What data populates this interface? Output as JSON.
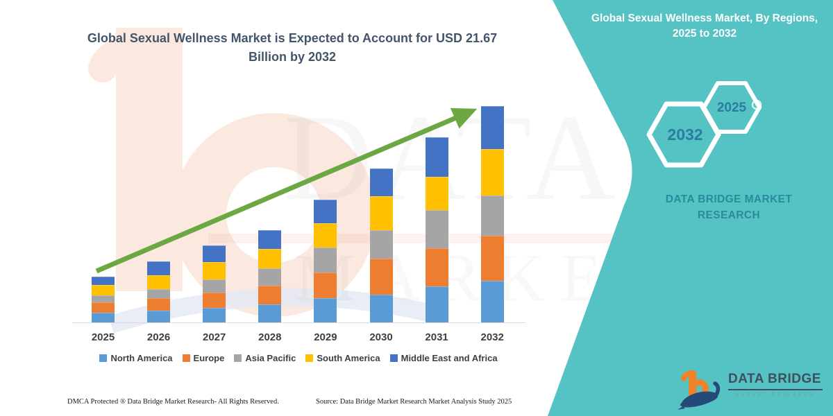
{
  "header": {
    "left_title": "Global Sexual Wellness Market is Expected to Account for USD 21.67 Billion by 2032"
  },
  "right_panel": {
    "title": "Global Sexual Wellness Market, By Regions, 2025 to 2032",
    "background_color": "#55C2C4",
    "hexagons": [
      {
        "label": "2032",
        "size": "large"
      },
      {
        "label": "2025",
        "size": "small"
      }
    ],
    "brand_text": "DATA BRIDGE MARKET RESEARCH"
  },
  "logo": {
    "name": "DATA BRIDGE",
    "subtitle": "MARKET RESEARCH"
  },
  "watermark": {
    "row1": "DATA BRIDGE",
    "row2": "MARKET RESEARCH"
  },
  "footer": {
    "dmca": "DMCA Protected ® Data Bridge Market Research-  All Rights Reserved.",
    "source": "Source: Data Bridge Market Research  Market Analysis Study 2025"
  },
  "colors": {
    "teal_panel": "#55C2C4",
    "title_text": "#44546A",
    "panel_title_text": "#FFFFFF",
    "hexagon_label_text": "#2B7DA0",
    "brand_block_text": "#2B8A9C",
    "trend_arrow": "#6BA843",
    "axis_line": "#D9D9D9"
  },
  "chart_data": {
    "type": "bar",
    "stacked": true,
    "title": "Global Sexual Wellness Market is Expected to Account for USD 21.67 Billion by 2032",
    "unit": "USD Billion",
    "xlabel": "",
    "ylabel": "",
    "grid": false,
    "legend_position": "bottom",
    "ylim": [
      0,
      22
    ],
    "categories": [
      "2025",
      "2026",
      "2027",
      "2028",
      "2029",
      "2030",
      "2031",
      "2032"
    ],
    "series": [
      {
        "name": "North America",
        "color": "#5B9BD5",
        "values": [
          0.97,
          1.18,
          1.46,
          1.81,
          2.43,
          2.78,
          3.61,
          4.17
        ]
      },
      {
        "name": "Europe",
        "color": "#ED7D31",
        "values": [
          1.04,
          1.25,
          1.53,
          1.88,
          2.57,
          3.61,
          3.82,
          4.52
        ]
      },
      {
        "name": "Asia Pacific",
        "color": "#A5A5A5",
        "values": [
          0.7,
          0.9,
          1.32,
          1.74,
          2.5,
          2.85,
          3.82,
          4.01
        ]
      },
      {
        "name": "South America",
        "color": "#FFC000",
        "values": [
          1.04,
          1.39,
          1.74,
          1.95,
          2.43,
          3.4,
          3.34,
          4.66
        ]
      },
      {
        "name": "Middle East and Africa",
        "color": "#4472C4",
        "values": [
          0.83,
          1.39,
          1.67,
          1.88,
          2.36,
          2.78,
          3.96,
          4.31
        ]
      }
    ],
    "totals": [
      4.58,
      6.11,
      7.72,
      9.26,
      12.29,
      15.42,
      18.55,
      21.67
    ],
    "final_year_value_usd_billion": 21.67,
    "annotations": [
      "Green upward trend arrow from 2025 toward the 2032 bar"
    ]
  }
}
